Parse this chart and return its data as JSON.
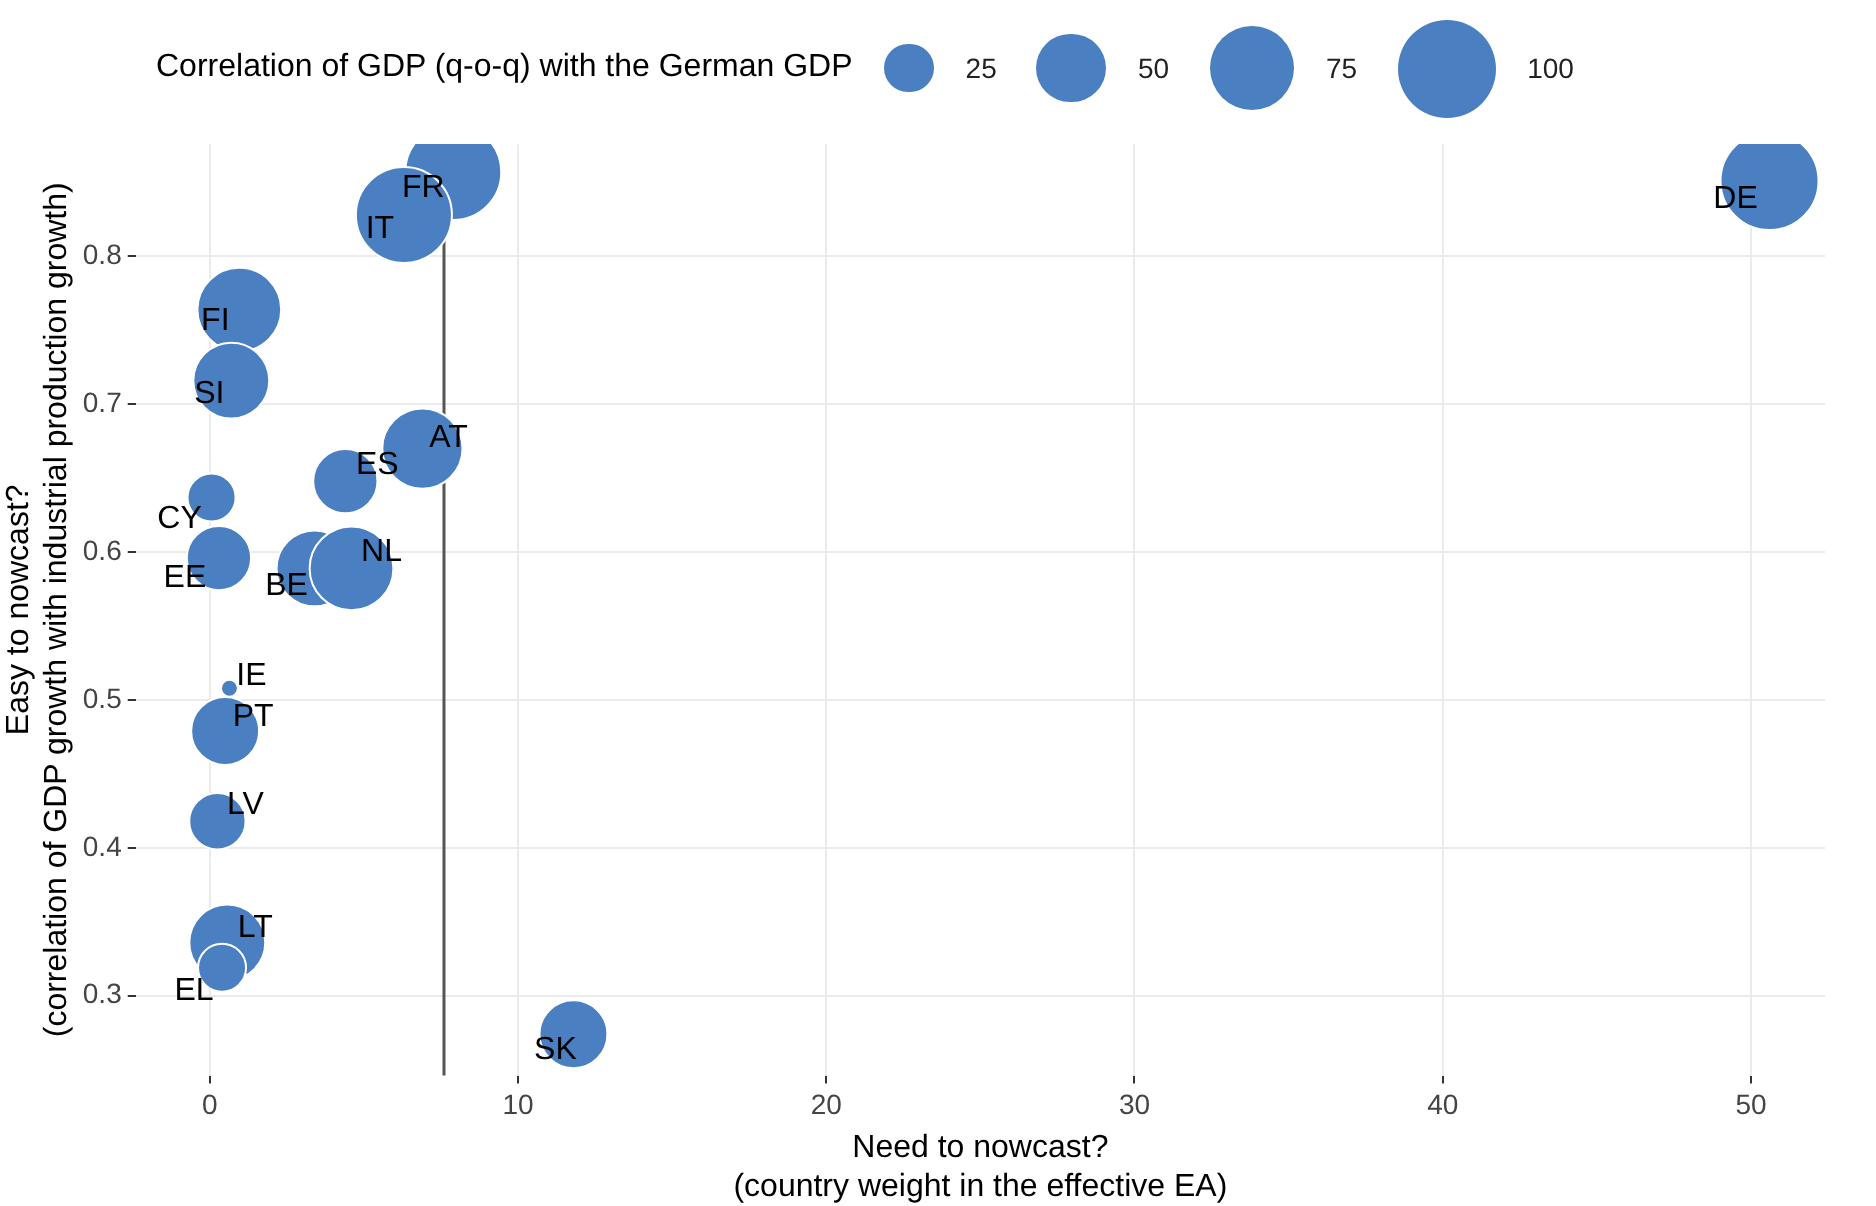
{
  "chart_data": {
    "type": "bubble",
    "legend_title": "Correlation of GDP (q-o-q) with the German GDP",
    "xlabel": "Need to nowcast?\n(country weight in the effective EA)",
    "ylabel": "Easy to nowcast?\n(correlation of GDP growth with industrial production growth)",
    "series": [
      {
        "color": "#4a7fc1",
        "x": [
          50.6,
          7.9,
          6.3,
          0.96,
          0.7,
          6.9,
          4.4,
          0.06,
          0.3,
          3.4,
          4.6,
          0.64,
          0.5,
          0.25,
          0.57,
          0.4,
          11.8
        ],
        "values": [
          0.851,
          0.857,
          0.828,
          0.764,
          0.716,
          0.67,
          0.648,
          0.637,
          0.596,
          0.589,
          0.589,
          0.508,
          0.479,
          0.418,
          0.336,
          0.319,
          0.274
        ],
        "sizes": [
          100,
          96,
          96,
          73,
          60,
          67,
          43,
          24,
          43,
          60,
          73,
          3,
          48,
          33,
          60,
          24,
          48
        ]
      }
    ],
    "annotations": [
      {
        "text": "DE",
        "x": 50.6,
        "y": 0.851
      },
      {
        "text": "FR",
        "x": 7.9,
        "y": 0.857
      },
      {
        "text": "IT",
        "x": 6.3,
        "y": 0.828
      },
      {
        "text": "FI",
        "x": 0.96,
        "y": 0.764
      },
      {
        "text": "SI",
        "x": 0.7,
        "y": 0.716
      },
      {
        "text": "AT",
        "x": 6.9,
        "y": 0.67
      },
      {
        "text": "ES",
        "x": 4.4,
        "y": 0.648
      },
      {
        "text": "CY",
        "x": 0.06,
        "y": 0.637
      },
      {
        "text": "EE",
        "x": 0.3,
        "y": 0.596
      },
      {
        "text": "BE",
        "x": 3.4,
        "y": 0.589
      },
      {
        "text": "NL",
        "x": 4.6,
        "y": 0.589
      },
      {
        "text": "IE",
        "x": 0.64,
        "y": 0.508
      },
      {
        "text": "PT",
        "x": 0.5,
        "y": 0.479
      },
      {
        "text": "LV",
        "x": 0.25,
        "y": 0.418
      },
      {
        "text": "LT",
        "x": 0.57,
        "y": 0.336
      },
      {
        "text": "EL",
        "x": 0.4,
        "y": 0.319
      },
      {
        "text": "SK",
        "x": 11.8,
        "y": 0.274
      }
    ],
    "size_legend": [
      25,
      50,
      75,
      100
    ],
    "ref_lines": [
      {
        "axis": "x",
        "value": 7.6,
        "color": "#555555"
      }
    ],
    "xlim": [
      -2.4,
      52.4
    ],
    "ylim": [
      0.246,
      0.876
    ],
    "xticks": [
      0,
      10,
      20,
      30,
      40,
      50
    ],
    "yticks": [
      0.3,
      0.4,
      0.5,
      0.6,
      0.7,
      0.8
    ],
    "grid": true
  }
}
